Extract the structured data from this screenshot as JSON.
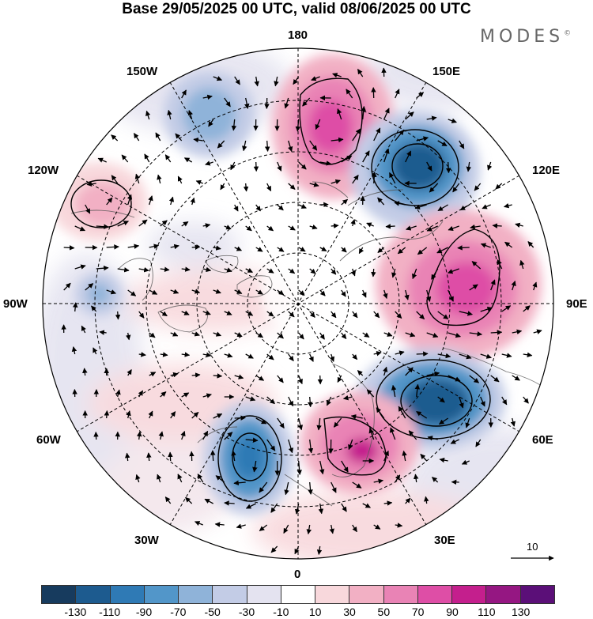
{
  "title": "Base 29/05/2025 00 UTC, valid 08/06/2025 00 UTC",
  "brand": "MODES",
  "brand_mark": "©",
  "longitude_labels": {
    "lon_180": "180",
    "lon_150w": "150W",
    "lon_150e": "150E",
    "lon_120w": "120W",
    "lon_120e": "120E",
    "lon_90w": "90W",
    "lon_90e": "90E",
    "lon_60w": "60W",
    "lon_60e": "60E",
    "lon_30w": "30W",
    "lon_30e": "30E",
    "lon_0": "0"
  },
  "reference_vector": {
    "value": "10"
  },
  "colorbar": {
    "colors": [
      "#173b5e",
      "#1d5b8f",
      "#2f7ab5",
      "#5296c9",
      "#8fb3d9",
      "#c3cce6",
      "#e4e3f0",
      "#ffffff",
      "#f8d8dc",
      "#f2b0c4",
      "#e983b5",
      "#de4ea6",
      "#c41f8d",
      "#951782",
      "#5b0f78"
    ],
    "ticks": [
      "-130",
      "-110",
      "-90",
      "-70",
      "-50",
      "-30",
      "-10",
      "10",
      "30",
      "50",
      "70",
      "90",
      "110",
      "130"
    ]
  }
}
